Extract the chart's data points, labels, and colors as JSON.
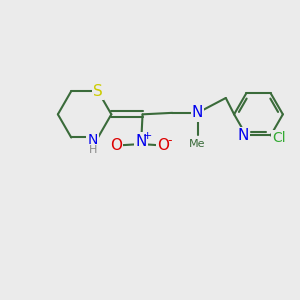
{
  "bg_color": "#ebebeb",
  "bond_color": "#3a6b3a",
  "S_color": "#cccc00",
  "N_color": "#0000ee",
  "O_color": "#dd0000",
  "Cl_color": "#33aa33",
  "bond_width": 1.5,
  "fig_width": 3.0,
  "fig_height": 3.0,
  "dpi": 100,
  "xlim": [
    0,
    10
  ],
  "ylim": [
    0,
    10
  ]
}
